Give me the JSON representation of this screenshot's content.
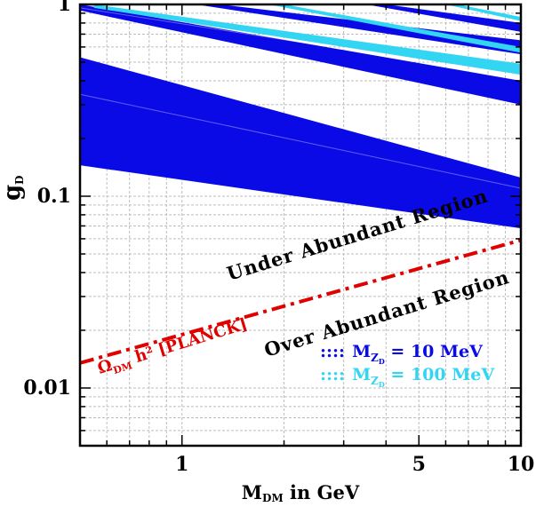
{
  "chart_data": {
    "type": "area",
    "xscale": "log",
    "yscale": "log",
    "xlim": [
      0.5,
      10
    ],
    "ylim": [
      0.005,
      1
    ],
    "grid": true,
    "xlabel": {
      "main": "M",
      "sub": "DM",
      "rest": " in GeV"
    },
    "ylabel": {
      "main": "g",
      "sub": "D"
    },
    "x_ticks": [
      {
        "value": 1,
        "label": "1"
      },
      {
        "value": 5,
        "label": "5"
      },
      {
        "value": 10,
        "label": "10"
      }
    ],
    "y_ticks": [
      {
        "value": 0.01,
        "label": "0.01"
      },
      {
        "value": 0.1,
        "label": "0.1"
      },
      {
        "value": 1,
        "label": "1"
      }
    ],
    "colors": {
      "blue": "#0a0ae6",
      "cyan": "#33d6f2",
      "red": "#e00000",
      "grid": "#bdbdbd"
    },
    "relic_line": {
      "name": "Ω h² [PLANCK]",
      "label_main": "Ω",
      "label_sub": "DM",
      "label_rest": " h² [PLANCK]",
      "points": [
        [
          0.5,
          0.0135
        ],
        [
          10,
          0.059
        ]
      ]
    },
    "region_labels": {
      "under": "Under Abundant Region",
      "over": "Over Abundant Region"
    },
    "legend": [
      {
        "marker": "::::",
        "main": "M",
        "sub": "Z",
        "subsub": "D",
        "rest": " = 10 MeV",
        "color": "#0a0ae6"
      },
      {
        "marker": "::::",
        "main": "M",
        "sub": "Z",
        "subsub": "D",
        "rest": " = 100 MeV",
        "color": "#33d6f2"
      }
    ],
    "series": [
      {
        "name": "M_ZD = 10 MeV",
        "color": "#0a0ae6",
        "bands": [
          {
            "upper": [
              [
                0.5,
                0.53
              ],
              [
                10,
                0.125
              ]
            ],
            "lower": [
              [
                0.5,
                0.145
              ],
              [
                10,
                0.068
              ]
            ]
          },
          {
            "upper": [
              [
                0.5,
                1.0
              ],
              [
                10,
                0.4
              ]
            ],
            "lower": [
              [
                0.5,
                0.93
              ],
              [
                10,
                0.3
              ]
            ]
          },
          {
            "upper": [
              [
                1.3,
                1.0
              ],
              [
                10,
                0.65
              ]
            ],
            "lower": [
              [
                1.1,
                1.0
              ],
              [
                10,
                0.55
              ]
            ]
          },
          {
            "upper": [
              [
                4.0,
                1.0
              ],
              [
                10,
                0.8
              ]
            ],
            "lower": [
              [
                3.5,
                1.0
              ],
              [
                10,
                0.72
              ]
            ]
          }
        ]
      },
      {
        "name": "M_ZD = 100 MeV",
        "color": "#33d6f2",
        "bands": [
          {
            "upper": [
              [
                0.55,
                1.0
              ],
              [
                10,
                0.49
              ]
            ],
            "lower": [
              [
                0.55,
                0.96
              ],
              [
                10,
                0.43
              ]
            ]
          },
          {
            "upper": [
              [
                2.0,
                1.0
              ],
              [
                10,
                0.6
              ]
            ],
            "lower": [
              [
                1.8,
                1.0
              ],
              [
                10,
                0.56
              ]
            ]
          },
          {
            "upper": [
              [
                6.5,
                1.0
              ],
              [
                10,
                0.86
              ]
            ],
            "lower": [
              [
                6.0,
                1.0
              ],
              [
                10,
                0.82
              ]
            ]
          }
        ]
      }
    ]
  }
}
